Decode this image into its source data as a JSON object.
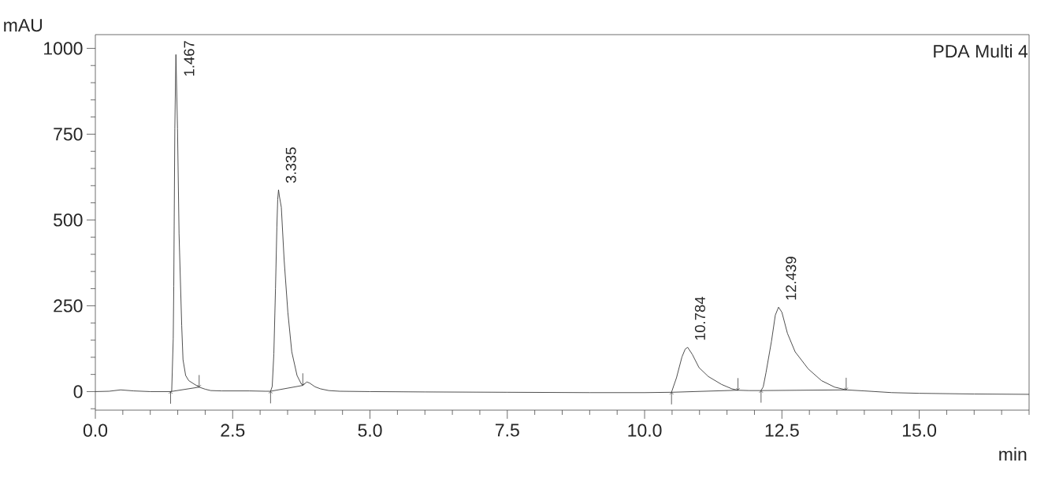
{
  "chart_data": {
    "type": "line",
    "xlabel": "min",
    "ylabel": "mAU",
    "xlim": [
      0,
      17
    ],
    "ylim": [
      -54,
      1040
    ],
    "xticks": [
      {
        "value": 0,
        "label": "0.0"
      },
      {
        "value": 0.5,
        "label": null
      },
      {
        "value": 1,
        "label": null
      },
      {
        "value": 1.5,
        "label": null
      },
      {
        "value": 2,
        "label": null
      },
      2.5,
      {
        "value": 3,
        "label": null
      },
      {
        "value": 3.5,
        "label": null
      },
      {
        "value": 4,
        "label": null
      },
      {
        "value": 4.5,
        "label": null
      },
      {
        "value": 5,
        "label": "5.0"
      },
      {
        "value": 5.5,
        "label": null
      },
      {
        "value": 6,
        "label": null
      },
      {
        "value": 6.5,
        "label": null
      },
      {
        "value": 7,
        "label": null
      },
      7.5,
      {
        "value": 8,
        "label": null
      },
      {
        "value": 8.5,
        "label": null
      },
      {
        "value": 9,
        "label": null
      },
      {
        "value": 9.5,
        "label": null
      },
      {
        "value": 10,
        "label": "10.0"
      },
      {
        "value": 10.5,
        "label": null
      },
      {
        "value": 11,
        "label": null
      },
      {
        "value": 11.5,
        "label": null
      },
      {
        "value": 12,
        "label": null
      },
      12.5,
      {
        "value": 13,
        "label": null
      },
      {
        "value": 13.5,
        "label": null
      },
      {
        "value": 14,
        "label": null
      },
      {
        "value": 14.5,
        "label": null
      },
      {
        "value": 15,
        "label": "15.0"
      },
      {
        "value": 15.5,
        "label": null
      },
      {
        "value": 16,
        "label": null
      },
      {
        "value": 16.5,
        "label": null
      },
      {
        "value": 17,
        "label": null
      }
    ],
    "yticks": [
      {
        "value": -50,
        "label": null
      },
      0,
      {
        "value": 50,
        "label": null
      },
      {
        "value": 100,
        "label": null
      },
      {
        "value": 150,
        "label": null
      },
      {
        "value": 200,
        "label": null
      },
      250,
      {
        "value": 300,
        "label": null
      },
      {
        "value": 350,
        "label": null
      },
      {
        "value": 400,
        "label": null
      },
      {
        "value": 450,
        "label": null
      },
      500,
      {
        "value": 550,
        "label": null
      },
      {
        "value": 600,
        "label": null
      },
      {
        "value": 650,
        "label": null
      },
      {
        "value": 700,
        "label": null
      },
      750,
      {
        "value": 800,
        "label": null
      },
      {
        "value": 850,
        "label": null
      },
      {
        "value": 900,
        "label": null
      },
      {
        "value": 950,
        "label": null
      },
      1000
    ],
    "line_style": "solid",
    "series": [
      {
        "color": "#3c3c3c",
        "x": [
          0,
          0.25,
          0.46,
          0.7,
          1.0,
          1.3,
          1.37,
          1.39,
          1.418,
          1.428,
          1.447,
          1.467,
          1.496,
          1.524,
          1.572,
          1.596,
          1.644,
          1.7,
          1.808,
          1.89,
          2.0,
          2.1,
          2.3,
          2.8,
          3.1,
          3.19,
          3.22,
          3.25,
          3.28,
          3.305,
          3.32,
          3.335,
          3.35,
          3.386,
          3.437,
          3.505,
          3.576,
          3.672,
          3.744,
          3.777,
          3.85,
          3.9,
          4.0,
          4.1,
          4.25,
          4.45,
          5.0,
          6.0,
          7.5,
          9.0,
          10.0,
          10.49,
          10.53,
          10.58,
          10.68,
          10.74,
          10.784,
          10.87,
          10.99,
          11.16,
          11.4,
          11.59,
          11.7,
          11.9,
          12.12,
          12.16,
          12.21,
          12.31,
          12.38,
          12.439,
          12.5,
          12.6,
          12.74,
          12.98,
          13.22,
          13.46,
          13.67,
          14.0,
          14.5,
          15.0,
          16.0,
          17.0
        ],
        "values": [
          0,
          1,
          5,
          2,
          0,
          0,
          0,
          1,
          154,
          307,
          766,
          982,
          766,
          460,
          193,
          93,
          47,
          32,
          21,
          13,
          7,
          3,
          2,
          2,
          1,
          1,
          15,
          110,
          300,
          480,
          560,
          588,
          570,
          537,
          384,
          231,
          116,
          47,
          24,
          18,
          28,
          25,
          14,
          8,
          3,
          1,
          0,
          -1,
          -2,
          -3,
          -3,
          -2,
          17,
          40,
          101,
          124,
          129,
          108,
          70,
          44,
          21,
          8,
          4,
          3,
          3,
          14,
          55,
          147,
          223,
          246,
          231,
          170,
          116,
          66,
          32,
          13,
          5,
          2,
          -3,
          -5,
          -7,
          -8
        ]
      },
      {
        "color": "#3c3c3c",
        "x": [
          1.37,
          1.89,
          2.5,
          3.19,
          3.777,
          7.0,
          10.49,
          11.7,
          11.9,
          12.12,
          13.67
        ],
        "values": [
          0,
          13,
          null,
          1,
          18,
          null,
          -2,
          4,
          null,
          3,
          5
        ]
      }
    ],
    "annotations": [
      "PDA Multi 4",
      {
        "text": "1.467",
        "x": 1.467,
        "y": 982
      },
      {
        "text": "3.335",
        "x": 3.335,
        "y": 588
      },
      {
        "text": "10.784",
        "x": 10.784,
        "y": 129
      },
      {
        "text": "12.439",
        "x": 12.439,
        "y": 246
      }
    ]
  }
}
